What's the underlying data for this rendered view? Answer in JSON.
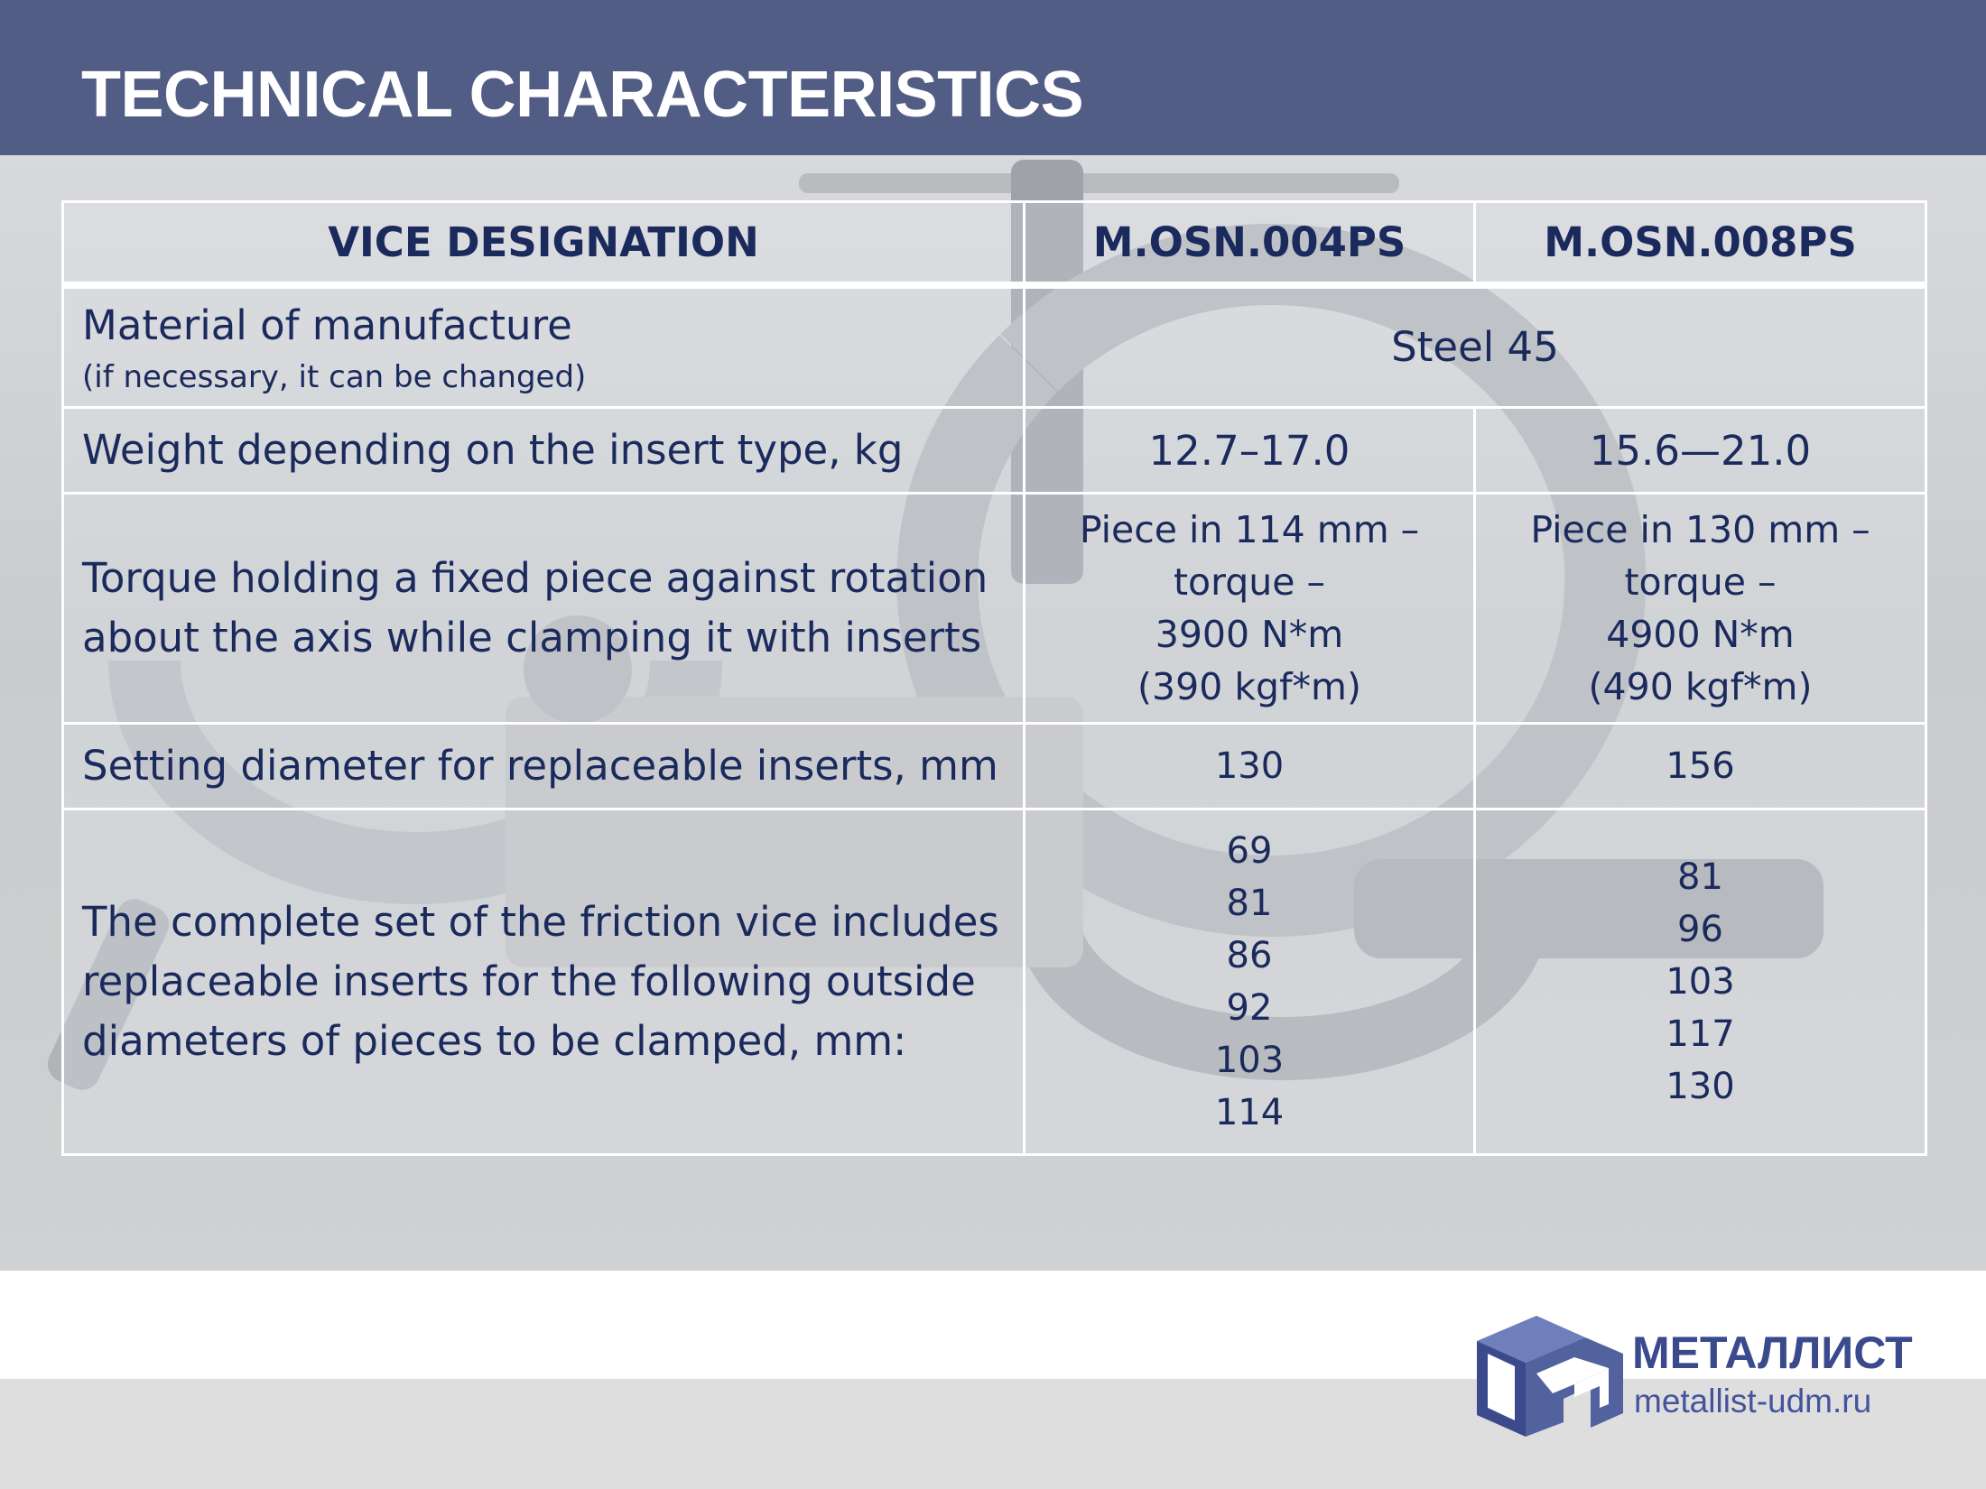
{
  "header": {
    "title": "TECHNICAL CHARACTERISTICS"
  },
  "table": {
    "headers": [
      "VICE DESIGNATION",
      "M.OSN.004PS",
      "M.OSN.008PS"
    ],
    "material": {
      "label": "Material of manufacture",
      "note": "(if necessary, it can be changed)",
      "value": "Steel 45"
    },
    "weight": {
      "label": "Weight depending on the insert type, kg",
      "values": [
        "12.7–17.0",
        "15.6—21.0"
      ]
    },
    "torque": {
      "label_lines": [
        "Torque holding a fixed piece against rotation",
        "about the axis while clamping it with inserts"
      ],
      "col1_lines": [
        "Piece in 114 mm –",
        "torque –",
        "3900 N*m",
        "(390 kgf*m)"
      ],
      "col2_lines": [
        "Piece in 130 mm –",
        "torque –",
        "4900 N*m",
        "(490 kgf*m)"
      ]
    },
    "setting_diameter": {
      "label": "Setting diameter for replaceable inserts, mm",
      "values": [
        "130",
        "156"
      ]
    },
    "inserts": {
      "label_lines": [
        "The complete set of the friction vice includes",
        "replaceable inserts for the following outside",
        "diameters of pieces to be clamped, mm:"
      ],
      "col1": [
        "69",
        "81",
        "86",
        "92",
        "103",
        "114"
      ],
      "col2": [
        "81",
        "96",
        "103",
        "117",
        "130"
      ]
    }
  },
  "brand": {
    "name": "МЕТАЛЛИСТ",
    "url": "metallist-udm.ru",
    "color": "#3a4a8c"
  }
}
